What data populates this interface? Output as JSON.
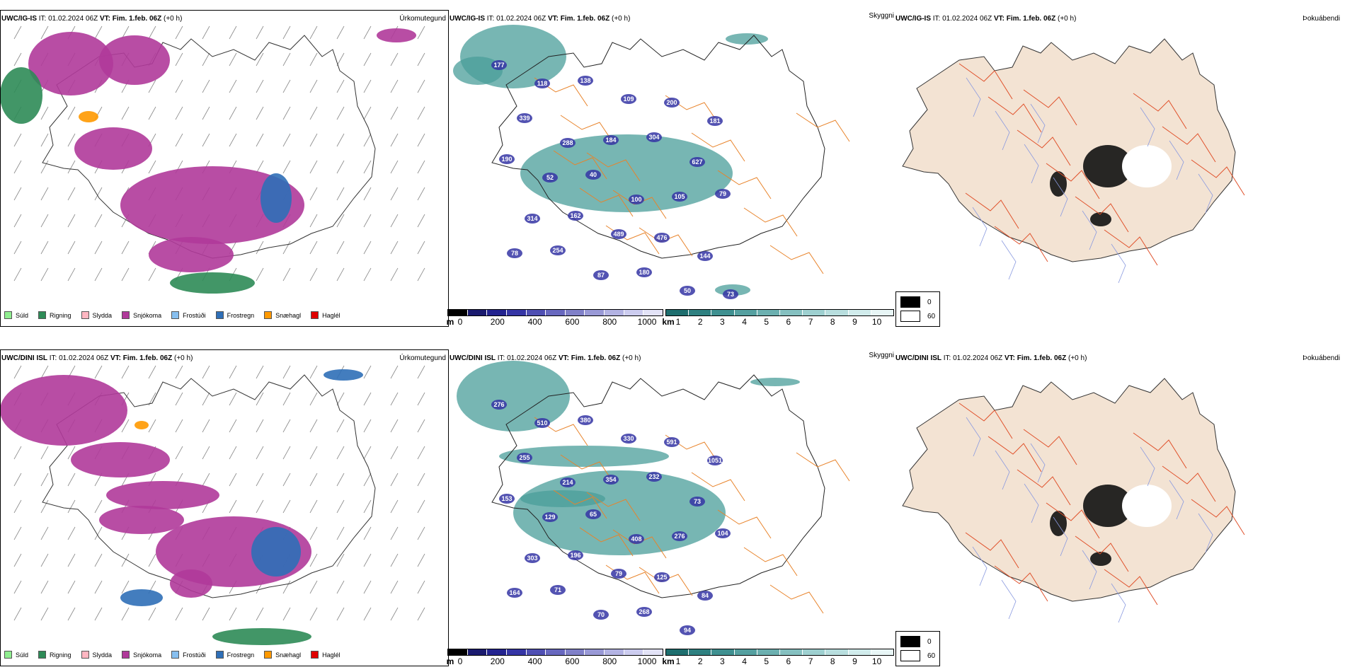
{
  "panels": [
    {
      "header": {
        "model": "UWC/IG-IS",
        "it_label": "IT:",
        "it_value": "01.02.2024 06Z",
        "vt_label": "VT:",
        "vt_value": "Fim. 1.feb. 06Z",
        "lead": "(+0 h)"
      }
    },
    {
      "header": {
        "model": "UWC/DINI ISL",
        "it_label": "IT:",
        "it_value": "01.02.2024 06Z",
        "vt_label": "VT:",
        "vt_value": "Fim. 1.feb. 06Z",
        "lead": "(+0 h)"
      }
    }
  ],
  "panel_types": {
    "precip": "Úrkomutegund",
    "visibility": "Skyggni",
    "fog": "Þokuábendi"
  },
  "precip_legend": [
    {
      "label": "Súld",
      "color": "#90ee90"
    },
    {
      "label": "Rigning",
      "color": "#2e8b57"
    },
    {
      "label": "Slydda",
      "color": "#ffb6c1"
    },
    {
      "label": "Snjókoma",
      "color": "#b03a9a"
    },
    {
      "label": "Frostúði",
      "color": "#87bfef"
    },
    {
      "label": "Frostregn",
      "color": "#2f6fb7"
    },
    {
      "label": "Snæhagl",
      "color": "#ff9900"
    },
    {
      "label": "Haglél",
      "color": "#e00000"
    }
  ],
  "ceiling_scale": {
    "unit": "m",
    "ticks": [
      "0",
      "200",
      "400",
      "600",
      "800",
      "1000"
    ],
    "colors": [
      "#000000",
      "#1a1a6e",
      "#23238f",
      "#3535a5",
      "#4f4fb3",
      "#6868bf",
      "#8080c8",
      "#9999d6",
      "#b3b3e3",
      "#ccccef",
      "#e3e3f7"
    ]
  },
  "visibility_scale": {
    "unit": "km",
    "ticks": [
      "1",
      "2",
      "3",
      "4",
      "5",
      "6",
      "7",
      "8",
      "9",
      "10"
    ],
    "colors": [
      "#1e6e6e",
      "#2e8080",
      "#3f9090",
      "#55a0a0",
      "#6cb0b0",
      "#85c0c0",
      "#9ed0d0",
      "#b8dede",
      "#d1ecec",
      "#e8f6f6"
    ]
  },
  "fog_legend": [
    {
      "label": "0",
      "color": "#000000"
    },
    {
      "label": "60",
      "color": "#ffffff"
    }
  ],
  "visibility_labels": [
    [
      "177",
      "118",
      "138",
      "109",
      "200",
      "181",
      "339",
      "288",
      "184",
      "304",
      "627",
      "190",
      "52",
      "40",
      "100",
      "105",
      "79",
      "314",
      "162",
      "489",
      "476",
      "144",
      "78",
      "254",
      "87",
      "180",
      "50",
      "73"
    ],
    [
      "276",
      "510",
      "380",
      "330",
      "591",
      "1051",
      "255",
      "214",
      "354",
      "232",
      "73",
      "153",
      "129",
      "65",
      "408",
      "276",
      "104",
      "303",
      "196",
      "79",
      "125",
      "84",
      "164",
      "71",
      "70",
      "268",
      "94"
    ]
  ],
  "colors": {
    "snow": "#b03a9a",
    "rain": "#2e8b57",
    "freezing_rain": "#2f6fb7",
    "ice_pellets": "#ff9900",
    "vis_teal": "#4a9e9a",
    "ceiling_blue": "#3535a5",
    "road": "#e8832a",
    "land": "#f3e3d3",
    "river": "#8a9ae0"
  }
}
